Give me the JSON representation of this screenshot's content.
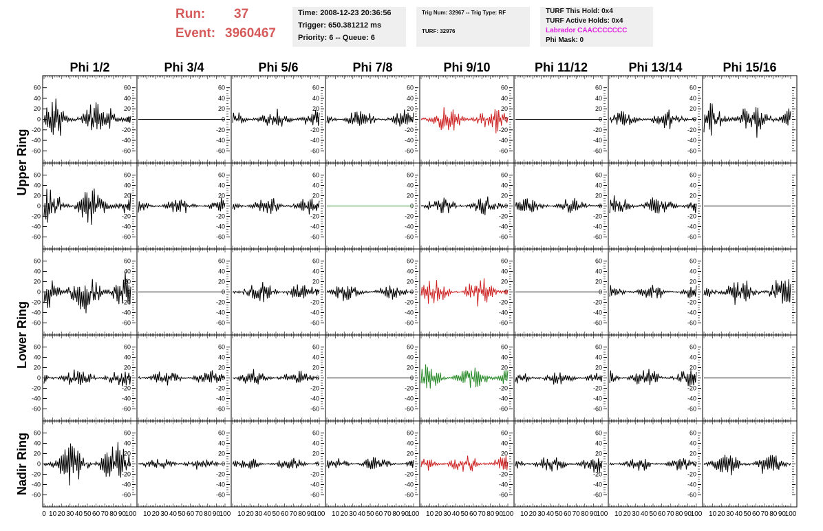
{
  "header": {
    "run_label": "Run:",
    "run_value": "37",
    "event_label": "Event:",
    "event_value": "3960467",
    "time": "Time: 2008-12-23 20:36:56",
    "trigger": "Trigger: 650.381212 ms",
    "priority": "Priority: 6 -- Queue: 6",
    "trig_num": "Trig Num: 32967 -- Trig Type: RF",
    "turf": "TURF: 32976",
    "turf_this_hold": "TURF This Hold: 0x4",
    "turf_active_holds": "TURF Active Holds: 0x4",
    "labrador": "Labrador CAACCCCCCC",
    "phi_mask": "Phi Mask: 0"
  },
  "columns": [
    "Phi 1/2",
    "Phi 3/4",
    "Phi 5/6",
    "Phi 7/8",
    "Phi 9/10",
    "Phi 11/12",
    "Phi 13/14",
    "Phi 15/16"
  ],
  "row_groups": [
    {
      "label": "Upper Ring",
      "rows": [
        0,
        1
      ]
    },
    {
      "label": "Lower Ring",
      "rows": [
        2,
        3
      ]
    },
    {
      "label": "Nadir Ring",
      "rows": [
        4
      ]
    }
  ],
  "colors": {
    "run_text": "#d65b5b",
    "labrador_text": "#e020e0",
    "trace_default": "#000000",
    "trace_red": "#cc2222",
    "trace_green": "#2a8a2a"
  },
  "chart_data": {
    "type": "line",
    "xlabel": "",
    "ylabel": "",
    "xlim": [
      0,
      100
    ],
    "ylim": [
      -70,
      70
    ],
    "x_ticks": [
      0,
      10,
      20,
      30,
      40,
      50,
      60,
      70,
      80,
      90,
      100
    ],
    "y_ticks": [
      -60,
      -40,
      -20,
      0,
      20,
      40,
      60
    ],
    "samples_per_trace": 95,
    "traces": [
      [
        {
          "amp": 38,
          "color": "black"
        },
        {
          "amp": 0,
          "color": "black"
        },
        {
          "amp": 18,
          "color": "black"
        },
        {
          "amp": 18,
          "color": "black"
        },
        {
          "amp": 24,
          "color": "red"
        },
        {
          "amp": 0,
          "color": "black"
        },
        {
          "amp": 16,
          "color": "black"
        },
        {
          "amp": 30,
          "color": "black"
        }
      ],
      [
        {
          "amp": 32,
          "color": "black"
        },
        {
          "amp": 14,
          "color": "black"
        },
        {
          "amp": 16,
          "color": "black"
        },
        {
          "amp": 0,
          "color": "green"
        },
        {
          "amp": 16,
          "color": "black"
        },
        {
          "amp": 14,
          "color": "black"
        },
        {
          "amp": 18,
          "color": "black"
        },
        {
          "amp": 0,
          "color": "black"
        }
      ],
      [
        {
          "amp": 42,
          "color": "black"
        },
        {
          "amp": 0,
          "color": "black"
        },
        {
          "amp": 18,
          "color": "black"
        },
        {
          "amp": 16,
          "color": "black"
        },
        {
          "amp": 26,
          "color": "red"
        },
        {
          "amp": 0,
          "color": "black"
        },
        {
          "amp": 14,
          "color": "black"
        },
        {
          "amp": 26,
          "color": "black"
        }
      ],
      [
        {
          "amp": 18,
          "color": "black"
        },
        {
          "amp": 14,
          "color": "black"
        },
        {
          "amp": 14,
          "color": "black"
        },
        {
          "amp": 0,
          "color": "black"
        },
        {
          "amp": 24,
          "color": "green"
        },
        {
          "amp": 14,
          "color": "black"
        },
        {
          "amp": 18,
          "color": "black"
        },
        {
          "amp": 0,
          "color": "black"
        }
      ],
      [
        {
          "amp": 36,
          "color": "black"
        },
        {
          "amp": 12,
          "color": "black"
        },
        {
          "amp": 11,
          "color": "black"
        },
        {
          "amp": 13,
          "color": "black"
        },
        {
          "amp": 16,
          "color": "red"
        },
        {
          "amp": 16,
          "color": "black"
        },
        {
          "amp": 12,
          "color": "black"
        },
        {
          "amp": 20,
          "color": "black"
        }
      ]
    ]
  }
}
